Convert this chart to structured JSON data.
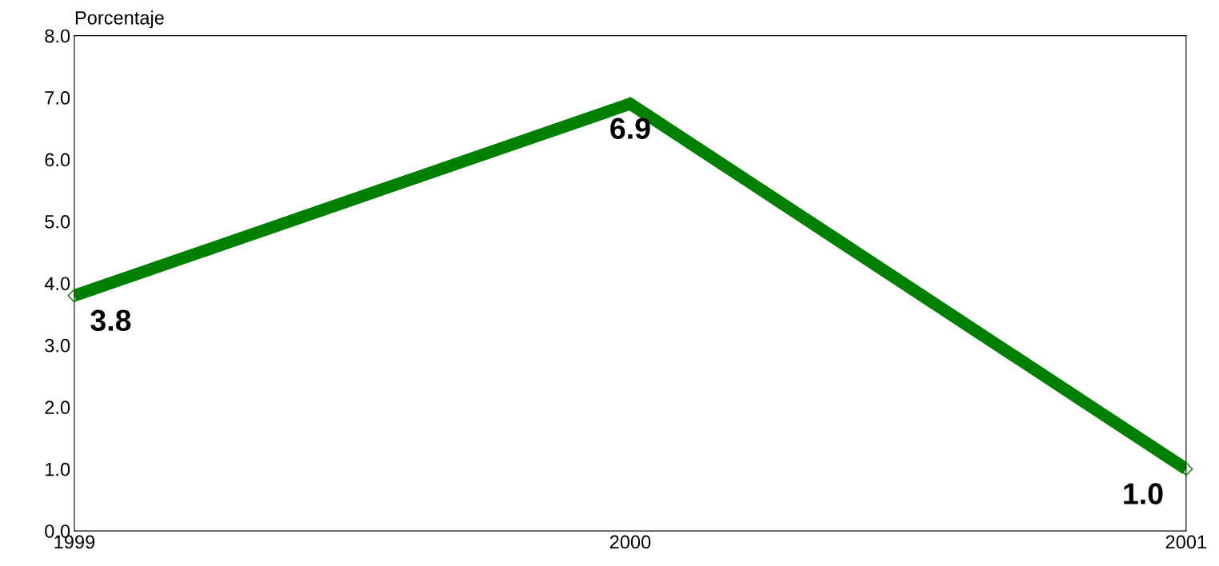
{
  "chart_data": {
    "type": "line",
    "ylabel": "Porcentaje",
    "x": [
      1999,
      2000,
      2001
    ],
    "series": [
      {
        "color": "#008000",
        "values": [
          3.8,
          6.9,
          1.0
        ],
        "value_labels": [
          "3.8",
          "6.9",
          "1.0"
        ]
      }
    ],
    "xlim": [
      1999,
      2001
    ],
    "xticks": [
      1999,
      2000,
      2001
    ],
    "ylim": [
      0,
      8
    ],
    "yticks": [
      {
        "value": 0,
        "label": "0.0"
      },
      {
        "value": 1,
        "label": "1.0"
      },
      {
        "value": 2,
        "label": "2.0"
      },
      {
        "value": 3,
        "label": "3.0"
      },
      {
        "value": 4,
        "label": "4.0"
      },
      {
        "value": 5,
        "label": "5.0"
      },
      {
        "value": 6,
        "label": "6.0"
      },
      {
        "value": 7,
        "label": "7.0"
      },
      {
        "value": 8,
        "label": "8.0"
      }
    ],
    "grid": false,
    "legend": false,
    "marker": "diamond",
    "line_style": "solid"
  }
}
